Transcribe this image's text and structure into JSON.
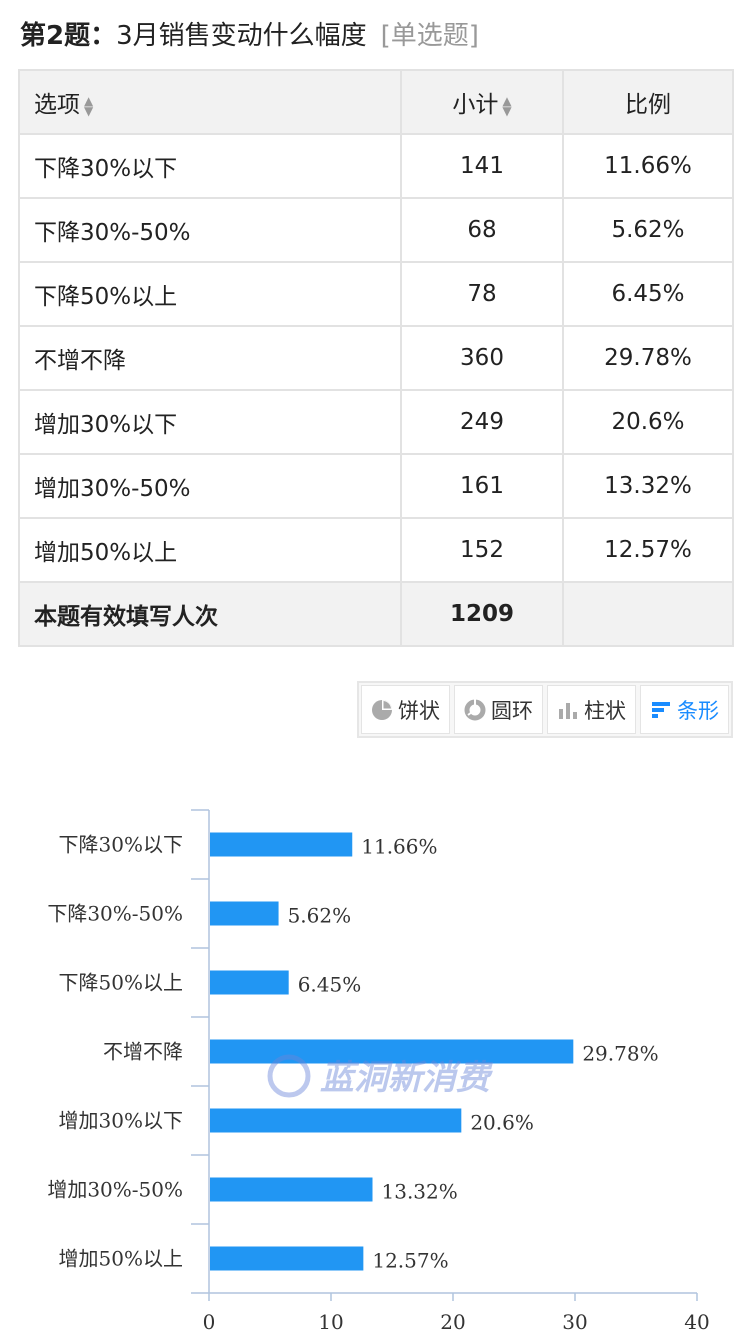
{
  "question": {
    "number": "第2题：",
    "title": "3月销售变动什么幅度",
    "type": "[单选题]"
  },
  "table": {
    "headers": {
      "option": "选项",
      "count": "小计",
      "percent": "比例"
    },
    "rows": [
      {
        "option": "下降30%以下",
        "count": "141",
        "percent": "11.66%"
      },
      {
        "option": "下降30%-50%",
        "count": "68",
        "percent": "5.62%"
      },
      {
        "option": "下降50%以上",
        "count": "78",
        "percent": "6.45%"
      },
      {
        "option": "不增不降",
        "count": "360",
        "percent": "29.78%"
      },
      {
        "option": "增加30%以下",
        "count": "249",
        "percent": "20.6%"
      },
      {
        "option": "增加30%-50%",
        "count": "161",
        "percent": "13.32%"
      },
      {
        "option": "增加50%以上",
        "count": "152",
        "percent": "12.57%"
      }
    ],
    "total": {
      "label": "本题有效填写人次",
      "count": "1209",
      "percent": ""
    }
  },
  "chart_switch": {
    "pie": "饼状",
    "ring": "圆环",
    "column": "柱状",
    "bar": "条形",
    "active": "bar"
  },
  "watermark": "蓝洞新消费",
  "colors": {
    "bar": "#2196f3",
    "accent": "#1a8cff",
    "axis": "#b0c4de"
  },
  "chart_data": {
    "type": "bar",
    "orientation": "horizontal",
    "categories": [
      "下降30%以下",
      "下降30%-50%",
      "下降50%以上",
      "不增不降",
      "增加30%以下",
      "增加30%-50%",
      "增加50%以上"
    ],
    "values": [
      11.66,
      5.62,
      6.45,
      29.78,
      20.6,
      13.32,
      12.57
    ],
    "labels": [
      "11.66%",
      "5.62%",
      "6.45%",
      "29.78%",
      "20.6%",
      "13.32%",
      "12.57%"
    ],
    "xlim": [
      0,
      40
    ],
    "xticks": [
      0,
      10,
      20,
      30,
      40
    ],
    "grid": false
  }
}
